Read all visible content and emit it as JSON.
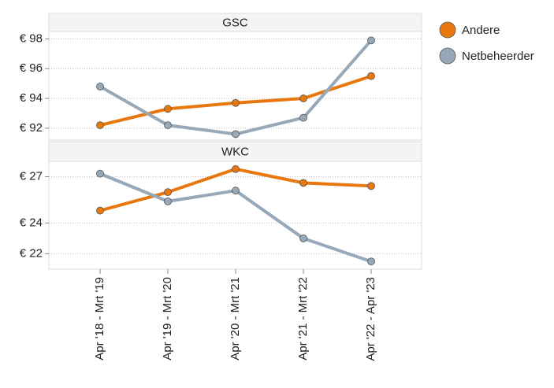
{
  "chart_data": [
    {
      "type": "line",
      "title": "GSC",
      "categories": [
        "Apr '18 - Mrt '19",
        "Apr '19 - Mrt '20",
        "Apr '20 - Mrt '21",
        "Apr '21 - Mrt '22",
        "Apr '22 - Apr '23"
      ],
      "series": [
        {
          "name": "Andere",
          "color": "#e8770e",
          "values": [
            92.2,
            93.3,
            93.7,
            94.0,
            95.5
          ]
        },
        {
          "name": "Netbeheerder",
          "color": "#97a8b8",
          "values": [
            94.8,
            92.2,
            91.6,
            92.7,
            97.9
          ]
        }
      ],
      "ylim": [
        91.2,
        98.5
      ],
      "yticks": [
        {
          "value": 98,
          "label": "€ 98"
        },
        {
          "value": 96,
          "label": "€ 96"
        },
        {
          "value": 94,
          "label": "€ 94"
        },
        {
          "value": 92,
          "label": "€ 92"
        }
      ],
      "grid": true
    },
    {
      "type": "line",
      "title": "WKC",
      "categories": [
        "Apr '18 - Mrt '19",
        "Apr '19 - Mrt '20",
        "Apr '20 - Mrt '21",
        "Apr '21 - Mrt '22",
        "Apr '22 - Apr '23"
      ],
      "series": [
        {
          "name": "Andere",
          "color": "#e8770e",
          "values": [
            24.8,
            26.0,
            27.5,
            26.6,
            26.4
          ]
        },
        {
          "name": "Netbeheerder",
          "color": "#97a8b8",
          "values": [
            27.2,
            25.4,
            26.1,
            23.0,
            21.5
          ]
        }
      ],
      "ylim": [
        21,
        28
      ],
      "yticks": [
        {
          "value": 27,
          "label": "€ 27"
        },
        {
          "value": 24,
          "label": "€ 24"
        },
        {
          "value": 22,
          "label": "€ 22"
        }
      ],
      "grid": true
    }
  ]
}
